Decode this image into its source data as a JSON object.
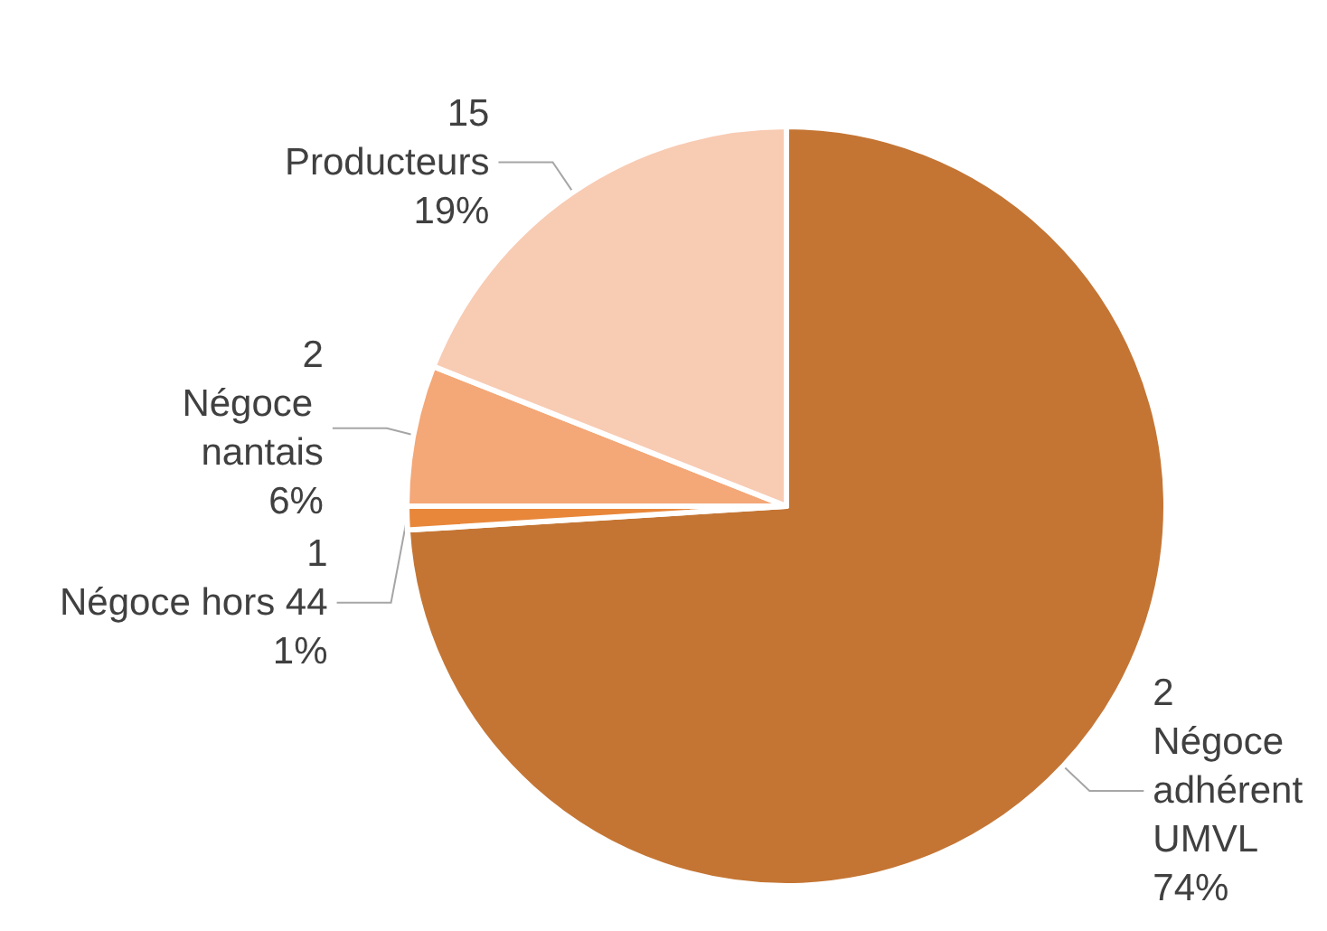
{
  "chart_data": {
    "type": "pie",
    "categories": [
      "2\nNégoce adhérent UMVL",
      "1\nNégoce hors 44",
      "2\nNégoce nantais",
      "15\nProducteurs"
    ],
    "values": [
      74,
      1,
      6,
      19
    ],
    "value_labels": [
      "74%",
      "1%",
      "6%",
      "19%"
    ],
    "colors": [
      "#c47534",
      "#e8873a",
      "#f4a777",
      "#f8cbb3"
    ],
    "data_labels": true,
    "legend": false
  }
}
